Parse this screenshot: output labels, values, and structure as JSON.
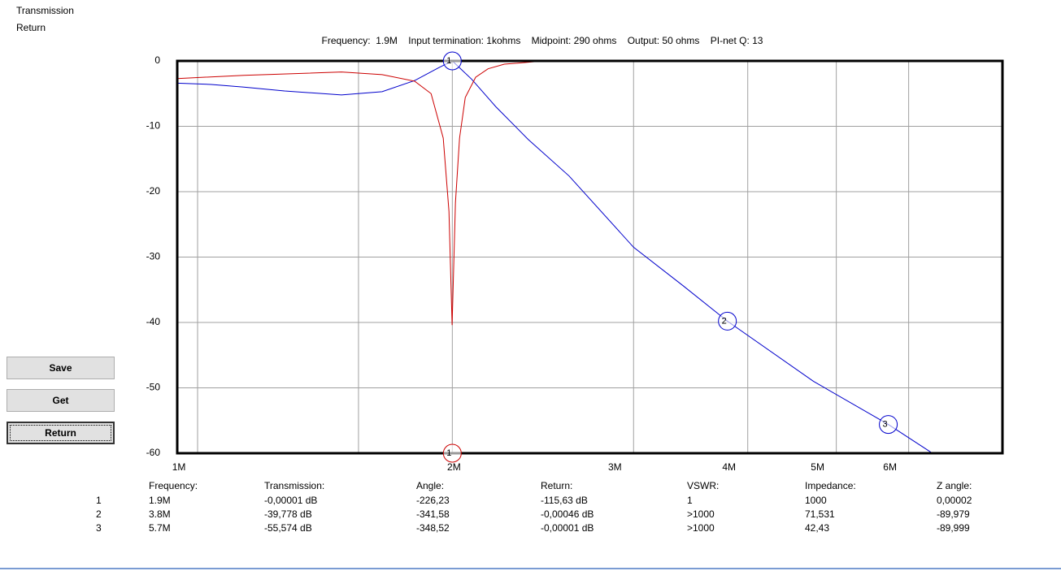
{
  "chart_data": {
    "type": "line",
    "title": "Frequency:  1.9M    Input termination: 1kohms    Midpoint: 290 ohms    Output: 50 ohms    PI-net Q: 13",
    "log_x": true,
    "grid": true,
    "xlim": [
      950000,
      7600000
    ],
    "xticks": [
      {
        "value": 1000000,
        "label": "1M"
      },
      {
        "value": 2000000,
        "label": "2M"
      },
      {
        "value": 3000000,
        "label": "3M"
      },
      {
        "value": 4000000,
        "label": "4M"
      },
      {
        "value": 5000000,
        "label": "5M"
      },
      {
        "value": 6000000,
        "label": "6M"
      }
    ],
    "xgrid": [
      1000000,
      1500000,
      1900000,
      3000000,
      4000000,
      5000000,
      6000000
    ],
    "ylim": [
      -60,
      0
    ],
    "yticks": [
      0,
      -10,
      -20,
      -30,
      -40,
      -50,
      -60
    ],
    "series": [
      {
        "name": "Transmission",
        "color": "#0000cc",
        "x": [
          950000,
          1035000,
          1124000,
          1245000,
          1437000,
          1592000,
          1728000,
          1838000,
          1900000,
          1995000,
          2120000,
          2300000,
          2550000,
          3000000,
          3400000,
          3800000,
          4720000,
          5700000,
          6370000
        ],
        "values": [
          -3.4,
          -3.6,
          -4.0,
          -4.6,
          -5.2,
          -4.7,
          -3.0,
          -1.0,
          0,
          -2.8,
          -7.0,
          -12.0,
          -17.6,
          -28.5,
          -34.4,
          -39.8,
          -49.0,
          -55.6,
          -60
        ]
      },
      {
        "name": "Return",
        "color": "#cc0000",
        "x": [
          950000,
          1124000,
          1437000,
          1592000,
          1728000,
          1801000,
          1857000,
          1884000,
          1899000,
          1915000,
          1935000,
          1963000,
          2015000,
          2079000,
          2166000,
          2350000
        ],
        "values": [
          -2.7,
          -2.2,
          -1.7,
          -2.1,
          -3.1,
          -5.0,
          -11.8,
          -23,
          -40.4,
          -21.7,
          -11.8,
          -5.6,
          -2.5,
          -1.2,
          -0.5,
          -0.1
        ]
      }
    ],
    "markers": [
      {
        "label": "1",
        "x": 1900000,
        "y": 0,
        "color": "#0000cc"
      },
      {
        "label": "2",
        "x": 3800000,
        "y": -39.8,
        "color": "#0000cc"
      },
      {
        "label": "3",
        "x": 5700000,
        "y": -55.6,
        "color": "#0000cc"
      },
      {
        "label": "1",
        "x": 1900000,
        "y": -60,
        "color": "#cc0000"
      }
    ]
  },
  "table": {
    "columns": [
      "Frequency:",
      "Transmission:",
      "Angle:",
      "Return:",
      "VSWR:",
      "Impedance:",
      "Z angle:"
    ],
    "rows": [
      [
        "1",
        "1.9M",
        "-0,00001 dB",
        "-226,23",
        "-115,63 dB",
        "1",
        "1000",
        "0,00002"
      ],
      [
        "2",
        "3.8M",
        "-39,778 dB",
        "-341,58",
        "-0,00046 dB",
        ">1000",
        "71,531",
        "-89,979"
      ],
      [
        "3",
        "5.7M",
        "-55,574 dB",
        "-348,52",
        "-0,00001 dB",
        ">1000",
        "42,43",
        "-89,999"
      ]
    ]
  },
  "buttons": [
    "Save",
    "Get",
    "Return"
  ]
}
